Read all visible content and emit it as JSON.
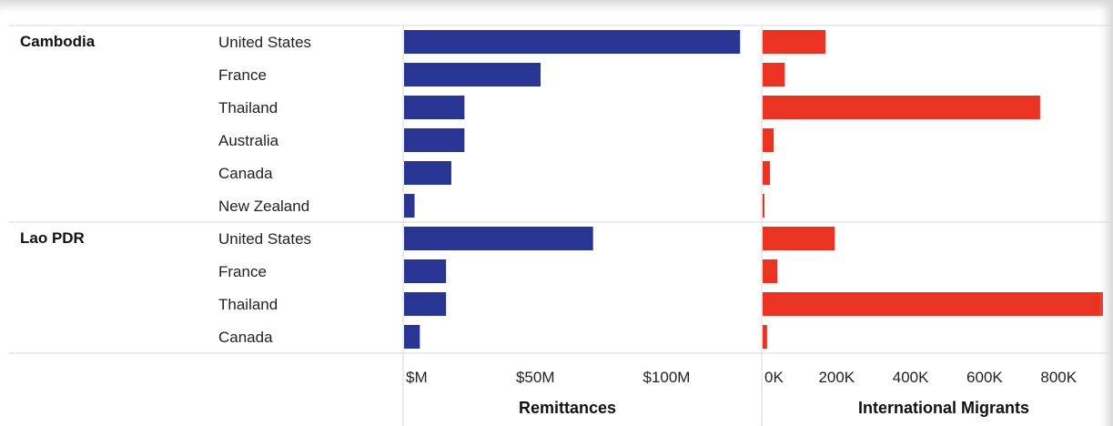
{
  "chart_data": {
    "type": "bar",
    "orientation": "horizontal",
    "groups": [
      {
        "name": "Cambodia",
        "categories": [
          "United States",
          "France",
          "Thailand",
          "Australia",
          "Canada",
          "New Zealand"
        ]
      },
      {
        "name": "Lao PDR",
        "categories": [
          "United States",
          "France",
          "Thailand",
          "Canada"
        ]
      }
    ],
    "panels": [
      {
        "title": "Remittances",
        "color": "#283593",
        "xlim": [
          0,
          130
        ],
        "ticks": [
          0,
          50,
          100
        ],
        "tick_labels": [
          "$M",
          "$50M",
          "$100M"
        ],
        "values": [
          [
            128,
            52,
            23,
            23,
            18,
            4
          ],
          [
            72,
            16,
            16,
            6
          ]
        ]
      },
      {
        "title": "International Migrants",
        "color": "#ea3323",
        "xlim": [
          0,
          920
        ],
        "ticks": [
          0,
          200,
          400,
          600,
          800
        ],
        "tick_labels": [
          "0K",
          "200K",
          "400K",
          "600K",
          "800K"
        ],
        "values": [
          [
            170,
            60,
            750,
            30,
            20,
            5
          ],
          [
            195,
            40,
            925,
            12
          ]
        ]
      }
    ]
  }
}
